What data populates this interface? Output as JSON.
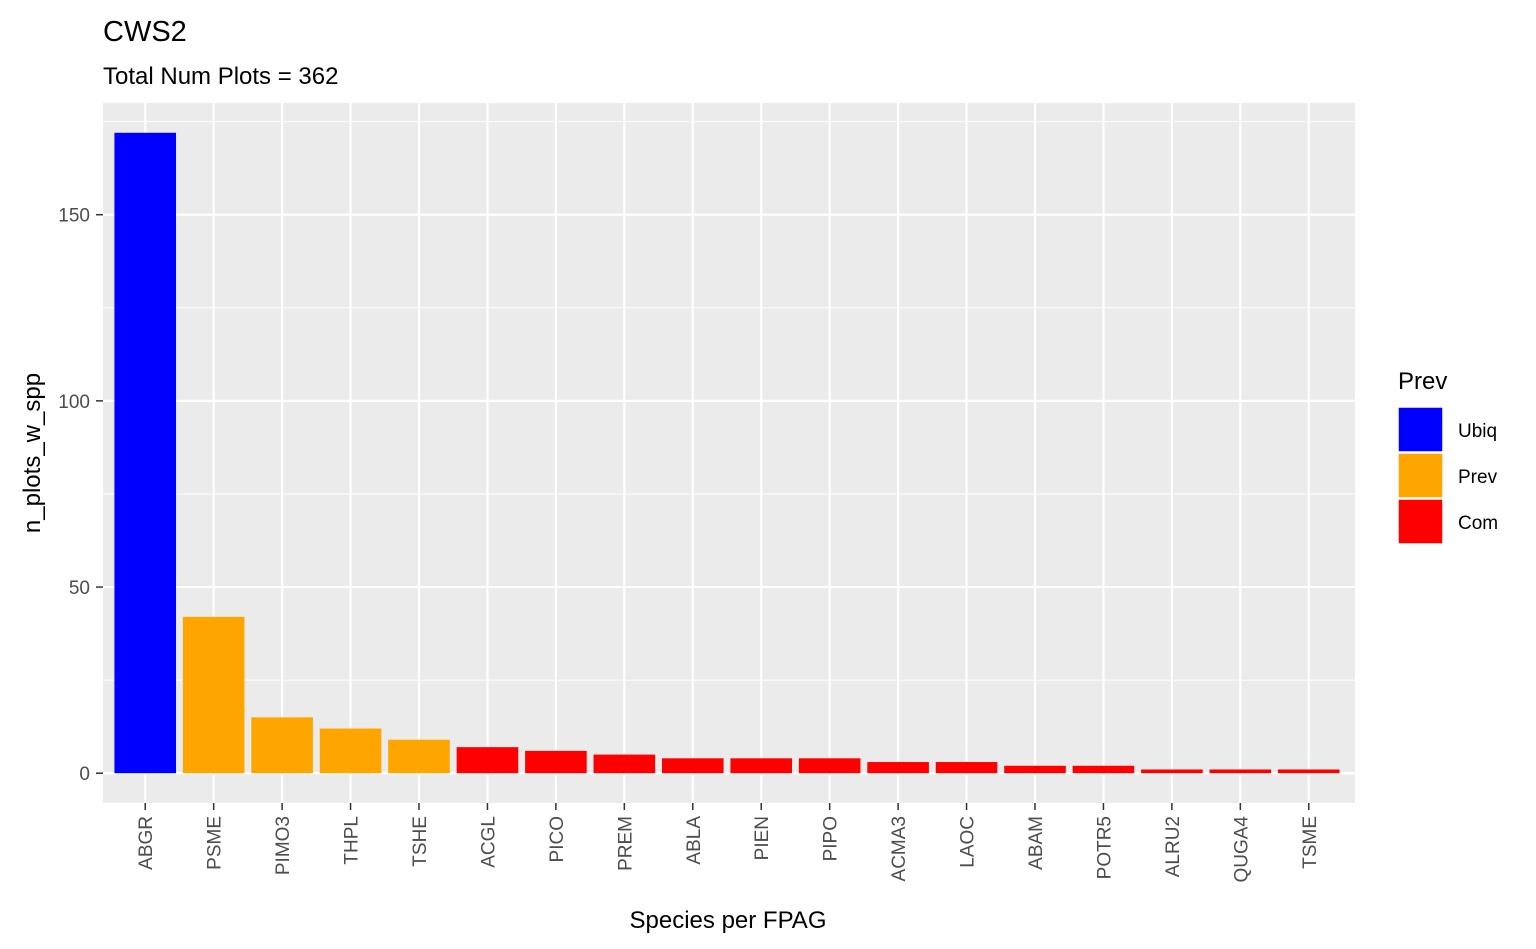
{
  "chart_data": {
    "type": "bar",
    "title": "CWS2",
    "subtitle": "Total Num Plots = 362",
    "xlabel": "Species per FPAG",
    "ylabel": "n_plots_w_spp",
    "categories": [
      "ABGR",
      "PSME",
      "PIMO3",
      "THPL",
      "TSHE",
      "ACGL",
      "PICO",
      "PREM",
      "ABLA",
      "PIEN",
      "PIPO",
      "ACMA3",
      "LAOC",
      "ABAM",
      "POTR5",
      "ALRU2",
      "QUGA4",
      "TSME"
    ],
    "values": [
      172,
      42,
      15,
      12,
      9,
      7,
      6,
      5,
      4,
      4,
      4,
      3,
      3,
      2,
      2,
      1,
      1,
      1
    ],
    "groups": [
      "Ubiq",
      "Prev",
      "Prev",
      "Prev",
      "Prev",
      "Com",
      "Com",
      "Com",
      "Com",
      "Com",
      "Com",
      "Com",
      "Com",
      "Com",
      "Com",
      "Com",
      "Com",
      "Com"
    ],
    "ylim": [
      -8,
      180
    ],
    "yticks": [
      0,
      50,
      100,
      150
    ],
    "grid": true,
    "legend": {
      "title": "Prev",
      "position": "right",
      "items": [
        {
          "label": "Ubiq",
          "color": "#0000ff"
        },
        {
          "label": "Prev",
          "color": "#ffa500"
        },
        {
          "label": "Com",
          "color": "#ff0000"
        }
      ]
    },
    "colors": {
      "Ubiq": "#0000ff",
      "Prev": "#ffa500",
      "Com": "#ff0000",
      "panel_background": "#ebebeb",
      "grid": "#ffffff",
      "tick_text": "#4d4d4d"
    }
  }
}
